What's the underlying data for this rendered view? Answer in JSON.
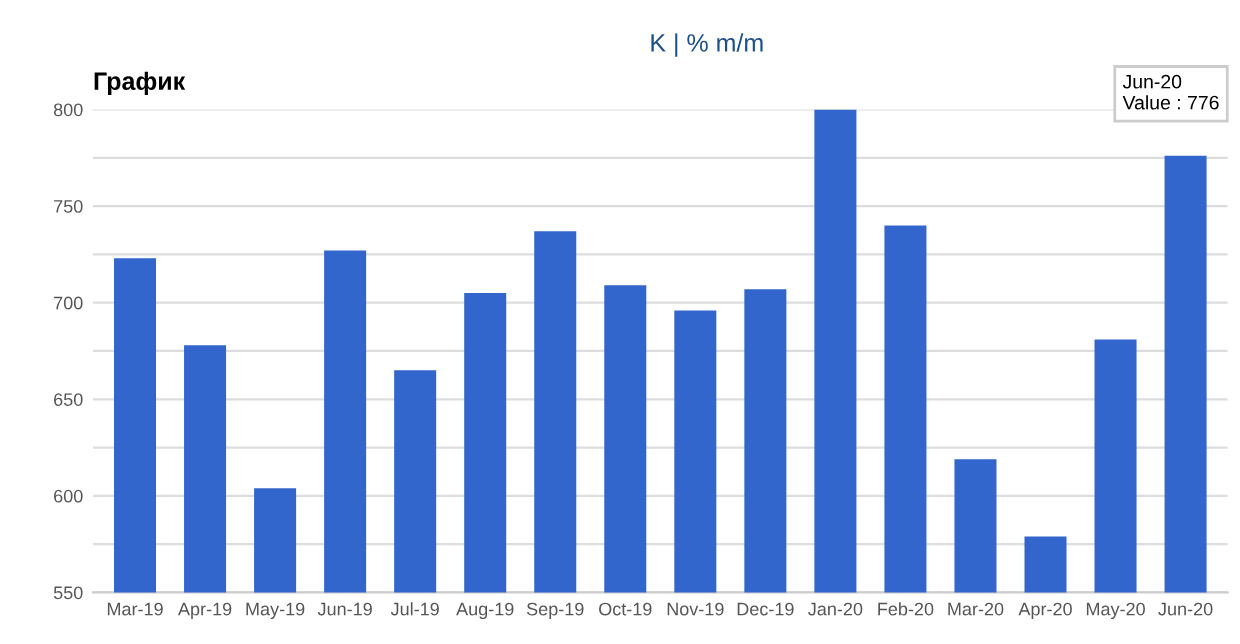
{
  "chart_data": {
    "type": "bar",
    "title": "График",
    "annotations": [
      "K | % m/m",
      {
        "text": "Jun-20\nValue : 776",
        "x": "Jun-20",
        "y": 776
      }
    ],
    "categories": [
      "Mar-19",
      "Apr-19",
      "May-19",
      "Jun-19",
      "Jul-19",
      "Aug-19",
      "Sep-19",
      "Oct-19",
      "Nov-19",
      "Dec-19",
      "Jan-20",
      "Feb-20",
      "Mar-20",
      "Apr-20",
      "May-20",
      "Jun-20"
    ],
    "values": [
      723,
      678,
      604,
      727,
      665,
      705,
      737,
      709,
      696,
      707,
      800,
      740,
      619,
      579,
      681,
      776
    ],
    "color": "#3366cc",
    "ylim": [
      550,
      800
    ],
    "yticks": [
      550,
      {
        "value": 575,
        "label": null
      },
      600,
      {
        "value": 625,
        "label": null
      },
      650,
      {
        "value": 675,
        "label": null
      },
      700,
      {
        "value": 725,
        "label": null
      },
      750,
      {
        "value": 775,
        "label": null
      },
      800
    ],
    "grid": "y",
    "legend": false
  }
}
